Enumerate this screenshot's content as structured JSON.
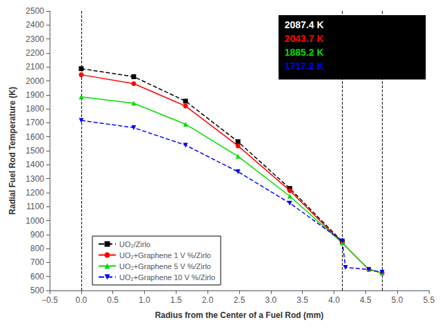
{
  "chart_data": {
    "type": "line",
    "xlabel": "Radius from the Center of a Fuel Rod (mm)",
    "ylabel": "Radial Fuel Rod Temperature (K)",
    "xlim": [
      -0.5,
      5.5
    ],
    "ylim": [
      500,
      2500
    ],
    "xticks": [
      {
        "value": -0.5,
        "label": "−0.5"
      },
      {
        "value": 0.0,
        "label": "0.0"
      },
      0.5,
      {
        "value": 1.0,
        "label": "1.0"
      },
      1.5,
      {
        "value": 2.0,
        "label": "2.0"
      },
      2.5,
      {
        "value": 3.0,
        "label": "3.0"
      },
      3.5,
      {
        "value": 4.0,
        "label": "4.0"
      },
      4.5,
      {
        "value": 5.0,
        "label": "5.0"
      },
      5.5
    ],
    "yticks": [
      500,
      600,
      700,
      800,
      900,
      1000,
      1100,
      1200,
      1300,
      1400,
      1500,
      1600,
      1700,
      1800,
      1900,
      2000,
      2100,
      2200,
      2300,
      2400,
      2500
    ],
    "grid": false,
    "legend": "lower left",
    "series": [
      {
        "name": "UO₂/Zirlo",
        "color": "black",
        "marker": "square",
        "line_style": "dashed",
        "x": [
          0.0,
          0.83,
          1.65,
          2.48,
          3.3,
          4.13
        ],
        "values": [
          2087.4,
          2030.0,
          1855.0,
          1565.0,
          1230.0,
          850.0
        ]
      },
      {
        "name": "UO₂+Graphene 1 V %/Zirlo",
        "color": "red",
        "marker": "circle",
        "line_style": "solid",
        "x": [
          0.0,
          0.83,
          1.65,
          2.48,
          3.3,
          4.13,
          4.55,
          4.76
        ],
        "values": [
          2043.7,
          1980.0,
          1820.0,
          1535.0,
          1215.0,
          840.0,
          650.0,
          625.0
        ]
      },
      {
        "name": "UO₂+Graphene 5 V %/Zirlo",
        "color": "#00dd00",
        "marker": "triangle-up",
        "line_style": "solid",
        "x": [
          0.0,
          0.83,
          1.65,
          2.48,
          3.3,
          4.13,
          4.55,
          4.76
        ],
        "values": [
          1885.2,
          1840.0,
          1690.0,
          1460.0,
          1175.0,
          840.0,
          650.0,
          625.0
        ]
      },
      {
        "name": "UO₂+Graphene 10 V %/Zirlo",
        "color": "blue",
        "marker": "triangle-down",
        "line_style": "dashed",
        "x": [
          0.0,
          0.83,
          1.65,
          2.48,
          3.3,
          4.13,
          4.18,
          4.55,
          4.76
        ],
        "values": [
          1717.2,
          1665.0,
          1540.0,
          1350.0,
          1125.0,
          855.0,
          665.0,
          650.0,
          630.0
        ]
      }
    ],
    "vlines": [
      0.0,
      4.13,
      4.76
    ],
    "annotations": [
      {
        "text": "2087.4 K",
        "color": "white"
      },
      {
        "text": "2043.7 K",
        "color": "red"
      },
      {
        "text": "1885.2 K",
        "color": "#00dd00"
      },
      {
        "text": "1717.2 K",
        "color": "blue"
      }
    ]
  }
}
